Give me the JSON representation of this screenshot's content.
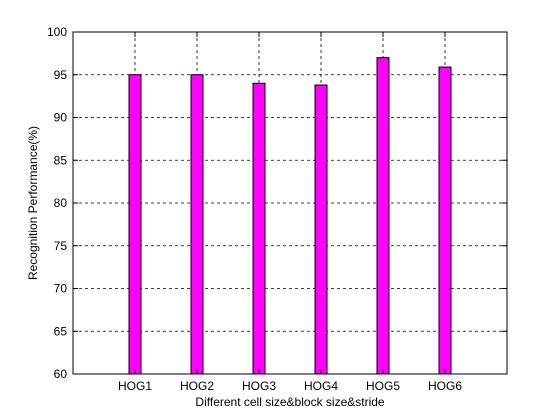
{
  "chart_data": {
    "type": "bar",
    "categories": [
      "HOG1",
      "HOG2",
      "HOG3",
      "HOG4",
      "HOG5",
      "HOG6"
    ],
    "values": [
      95.0,
      95.0,
      94.0,
      93.8,
      97.0,
      95.9
    ],
    "xlabel": "Different cell size&block size&stride",
    "ylabel": "Recognition Performance(%)",
    "ylim": [
      60,
      100
    ],
    "yticks": [
      60,
      65,
      70,
      75,
      80,
      85,
      90,
      95,
      100
    ],
    "grid": true,
    "bar_color": "#ff00ff",
    "edge_color": "#000000"
  }
}
